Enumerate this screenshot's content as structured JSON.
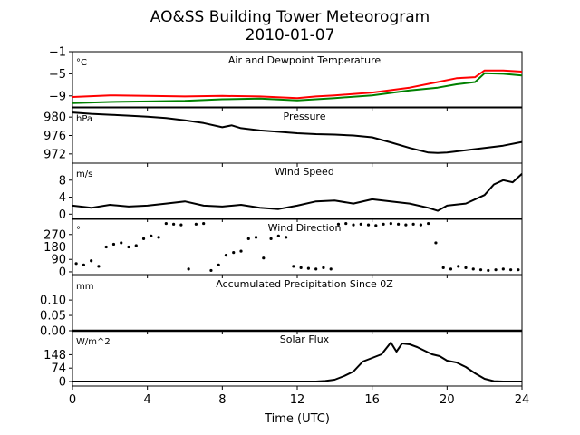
{
  "title_line1": "AO&SS Building Tower Meteorogram",
  "title_line2": "2010-01-07",
  "xlabel": "Time (UTC)",
  "chart_data": [
    {
      "type": "line",
      "title": "Air and Dewpoint Temperature",
      "unit": "°C",
      "ylim": [
        -11,
        -1
      ],
      "yticks": [
        -1,
        -5,
        -9
      ],
      "series": [
        {
          "color": "#ff0000",
          "x": [
            0,
            2,
            4,
            6,
            8,
            10,
            12,
            13,
            14,
            16,
            18,
            19.5,
            20.5,
            21.5,
            22,
            23,
            24
          ],
          "y": [
            -9.2,
            -8.9,
            -9.0,
            -9.1,
            -9.0,
            -9.1,
            -9.4,
            -9.1,
            -8.9,
            -8.4,
            -7.5,
            -6.5,
            -5.8,
            -5.6,
            -4.4,
            -4.4,
            -4.6
          ]
        },
        {
          "color": "#008000",
          "x": [
            0,
            2,
            4,
            6,
            8,
            10,
            12,
            13,
            14,
            16,
            18,
            19.5,
            20.5,
            21.5,
            22,
            23,
            24
          ],
          "y": [
            -10.3,
            -10.1,
            -10.0,
            -9.9,
            -9.6,
            -9.5,
            -9.8,
            -9.6,
            -9.4,
            -8.9,
            -8.0,
            -7.5,
            -6.9,
            -6.5,
            -4.9,
            -5.0,
            -5.3
          ]
        }
      ]
    },
    {
      "type": "line",
      "title": "Pressure",
      "unit": "hPa",
      "ylim": [
        970,
        982
      ],
      "yticks": [
        980,
        976,
        972
      ],
      "series": [
        {
          "color": "#000000",
          "x": [
            0,
            1,
            2,
            3,
            4,
            5,
            6,
            7,
            8,
            8.5,
            9,
            10,
            11,
            12,
            13,
            14,
            15,
            16,
            17,
            18,
            19,
            19.5,
            20,
            21,
            22,
            23,
            24
          ],
          "y": [
            981.0,
            980.7,
            980.5,
            980.3,
            980.1,
            979.8,
            979.3,
            978.7,
            977.8,
            978.2,
            977.6,
            977.1,
            976.8,
            976.5,
            976.3,
            976.2,
            976.0,
            975.6,
            974.5,
            973.3,
            972.3,
            972.2,
            972.3,
            972.8,
            973.3,
            973.8,
            974.6
          ]
        }
      ]
    },
    {
      "type": "line",
      "title": "Wind Speed",
      "unit": "m/s",
      "ylim": [
        -1,
        12
      ],
      "yticks": [
        8,
        4,
        0
      ],
      "series": [
        {
          "color": "#000000",
          "x": [
            0,
            1,
            2,
            3,
            4,
            5,
            6,
            7,
            8,
            9,
            10,
            11,
            12,
            13,
            14,
            15,
            16,
            17,
            18,
            19,
            19.5,
            20,
            21,
            22,
            22.5,
            23,
            23.5,
            24
          ],
          "y": [
            2.0,
            1.5,
            2.2,
            1.8,
            2.0,
            2.5,
            3.0,
            2.0,
            1.8,
            2.2,
            1.5,
            1.2,
            2.0,
            3.0,
            3.2,
            2.5,
            3.5,
            3.0,
            2.5,
            1.5,
            0.8,
            2.0,
            2.5,
            4.5,
            7.0,
            8.0,
            7.5,
            9.5
          ]
        }
      ]
    },
    {
      "type": "scatter",
      "title": "Wind Direction",
      "unit": "°",
      "ylim": [
        -20,
        380
      ],
      "yticks": [
        270,
        180,
        90,
        0
      ],
      "series": [
        {
          "color": "#000000",
          "x": [
            0.2,
            0.6,
            1.0,
            1.4,
            1.8,
            2.2,
            2.6,
            3.0,
            3.4,
            3.8,
            4.2,
            4.6,
            5.0,
            5.4,
            5.8,
            6.2,
            6.6,
            7.0,
            7.4,
            7.8,
            8.2,
            8.6,
            9.0,
            9.4,
            9.8,
            10.2,
            10.6,
            11.0,
            11.4,
            11.8,
            12.2,
            12.6,
            13.0,
            13.4,
            13.8,
            14.2,
            14.6,
            15.0,
            15.4,
            15.8,
            16.2,
            16.6,
            17.0,
            17.4,
            17.8,
            18.2,
            18.6,
            19.0,
            19.4,
            19.8,
            20.2,
            20.6,
            21.0,
            21.4,
            21.8,
            22.2,
            22.6,
            23.0,
            23.4,
            23.8
          ],
          "y": [
            60,
            50,
            80,
            40,
            180,
            200,
            210,
            180,
            190,
            240,
            260,
            250,
            350,
            345,
            340,
            20,
            345,
            350,
            10,
            50,
            120,
            140,
            150,
            240,
            250,
            100,
            240,
            260,
            250,
            40,
            30,
            25,
            20,
            30,
            20,
            345,
            350,
            340,
            345,
            340,
            335,
            345,
            350,
            345,
            340,
            345,
            340,
            350,
            210,
            30,
            20,
            40,
            30,
            20,
            15,
            10,
            15,
            20,
            15,
            15
          ]
        }
      ]
    },
    {
      "type": "line",
      "title": "Accumulated Precipitation Since 0Z",
      "unit": "mm",
      "ylim": [
        0,
        0.18
      ],
      "yticks": [
        0.1,
        0.05,
        0.0
      ],
      "series": [
        {
          "color": "#000000",
          "x": [
            0,
            24
          ],
          "y": [
            0,
            0
          ]
        }
      ]
    },
    {
      "type": "line",
      "title": "Solar Flux",
      "unit": "W/m^2",
      "ylim": [
        -25,
        280
      ],
      "yticks": [
        148,
        74,
        0
      ],
      "series": [
        {
          "color": "#000000",
          "x": [
            0,
            13.0,
            13.5,
            14.0,
            14.5,
            15.0,
            15.5,
            16.0,
            16.5,
            17.0,
            17.3,
            17.6,
            18.0,
            18.4,
            18.8,
            19.2,
            19.6,
            20.0,
            20.5,
            21.0,
            21.5,
            22.0,
            22.5,
            23.0,
            24
          ],
          "y": [
            0,
            0,
            3,
            10,
            30,
            55,
            110,
            130,
            150,
            215,
            165,
            210,
            205,
            190,
            170,
            150,
            140,
            115,
            105,
            80,
            45,
            15,
            2,
            0,
            0
          ]
        }
      ]
    }
  ],
  "xaxis": {
    "range": [
      0,
      24
    ],
    "ticks": [
      0,
      4,
      8,
      12,
      16,
      20,
      24
    ]
  }
}
